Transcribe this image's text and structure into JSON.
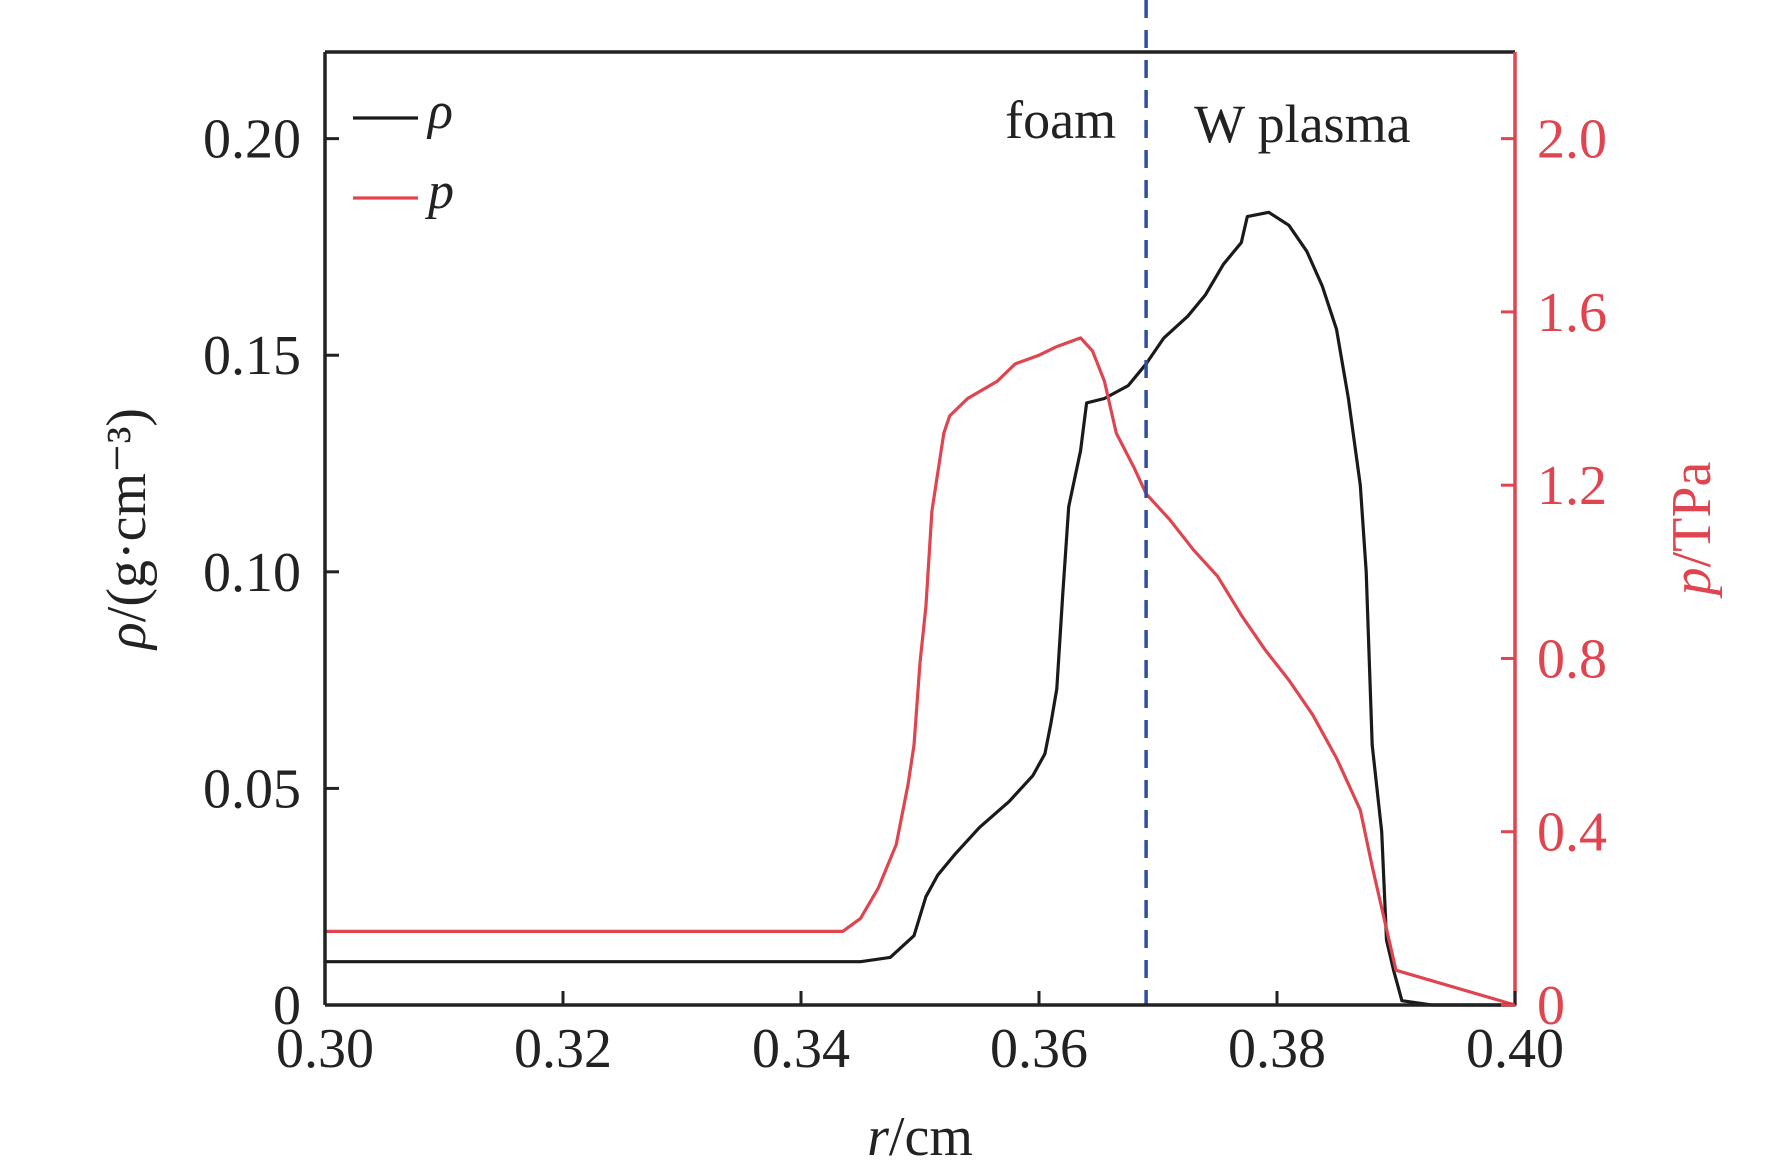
{
  "chart_data": {
    "type": "line",
    "xlabel": "r/cm",
    "ylabel_left": "ρ/(g·cm⁻³)",
    "ylabel_right": "p/TPa",
    "xlim": [
      0.3,
      0.4
    ],
    "ylim_left": [
      0,
      0.22
    ],
    "ylim_right": [
      0,
      2.2
    ],
    "xticks": [
      "0.30",
      "0.32",
      "0.34",
      "0.36",
      "0.38",
      "0.40"
    ],
    "xtick_values": [
      0.3,
      0.32,
      0.34,
      0.36,
      0.38,
      0.4
    ],
    "yticks_left": [
      "0",
      "0.05",
      "0.10",
      "0.15",
      "0.20"
    ],
    "ytick_values_left": [
      0,
      0.05,
      0.1,
      0.15,
      0.2
    ],
    "yticks_right": [
      "0",
      "0.4",
      "0.8",
      "1.2",
      "1.6",
      "2.0"
    ],
    "ytick_values_right": [
      0,
      0.4,
      0.8,
      1.2,
      1.6,
      2.0
    ],
    "grid": false,
    "legend_position": "top-left",
    "annotations": {
      "left_region": "foam",
      "right_region": "W plasma",
      "interface_x": 0.369
    },
    "colors": {
      "rho": "#1a1a1a",
      "p": "#e0444e",
      "interface": "#2f4ea0",
      "right_axis": "#e0444e"
    },
    "series": [
      {
        "name": "ρ",
        "axis": "left",
        "x": [
          0.3,
          0.32,
          0.34,
          0.345,
          0.3475,
          0.3495,
          0.3505,
          0.3515,
          0.353,
          0.355,
          0.3575,
          0.3595,
          0.3605,
          0.361,
          0.3615,
          0.362,
          0.3625,
          0.3635,
          0.364,
          0.3655,
          0.3675,
          0.369,
          0.3705,
          0.3725,
          0.374,
          0.3755,
          0.377,
          0.3775,
          0.3793,
          0.381,
          0.3825,
          0.3838,
          0.385,
          0.386,
          0.387,
          0.3875,
          0.388,
          0.3888,
          0.3892,
          0.3898,
          0.3905,
          0.393,
          0.4
        ],
        "y": [
          0.01,
          0.01,
          0.01,
          0.01,
          0.011,
          0.016,
          0.025,
          0.03,
          0.035,
          0.041,
          0.047,
          0.053,
          0.058,
          0.065,
          0.073,
          0.095,
          0.115,
          0.128,
          0.139,
          0.14,
          0.143,
          0.148,
          0.154,
          0.159,
          0.164,
          0.171,
          0.176,
          0.182,
          0.183,
          0.18,
          0.174,
          0.166,
          0.156,
          0.14,
          0.12,
          0.1,
          0.06,
          0.04,
          0.015,
          0.008,
          0.001,
          0.0,
          0.0
        ],
        "color": "#1a1a1a"
      },
      {
        "name": "p",
        "axis": "right",
        "x": [
          0.3,
          0.32,
          0.3435,
          0.345,
          0.3465,
          0.348,
          0.349,
          0.3495,
          0.35,
          0.3505,
          0.351,
          0.352,
          0.3525,
          0.354,
          0.3565,
          0.358,
          0.36,
          0.3615,
          0.3635,
          0.3645,
          0.3655,
          0.3665,
          0.368,
          0.369,
          0.371,
          0.373,
          0.375,
          0.377,
          0.379,
          0.381,
          0.383,
          0.385,
          0.387,
          0.388,
          0.389,
          0.39,
          0.4
        ],
        "y": [
          0.17,
          0.17,
          0.17,
          0.2,
          0.27,
          0.37,
          0.51,
          0.6,
          0.79,
          0.92,
          1.14,
          1.32,
          1.36,
          1.4,
          1.44,
          1.48,
          1.5,
          1.52,
          1.54,
          1.51,
          1.44,
          1.32,
          1.24,
          1.18,
          1.12,
          1.05,
          0.99,
          0.9,
          0.82,
          0.75,
          0.67,
          0.57,
          0.45,
          0.32,
          0.2,
          0.08,
          0.0
        ],
        "color": "#e0444e"
      }
    ]
  }
}
